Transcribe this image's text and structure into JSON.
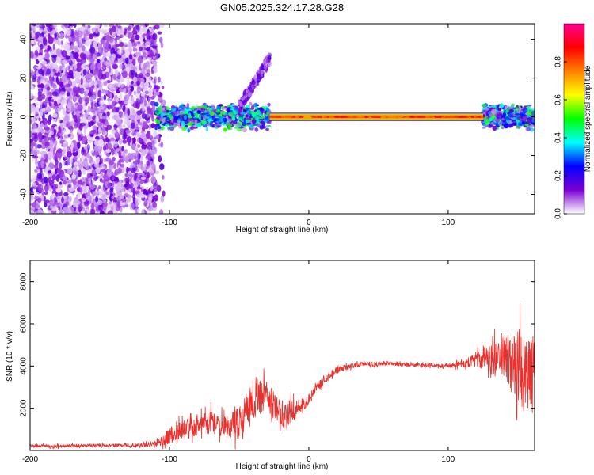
{
  "title": "GN05.2025.324.17.28.G28",
  "chart_data": [
    {
      "type": "heatmap",
      "xlabel": "Height of straight line (km)",
      "ylabel": "Frequency (Hz)",
      "xlim": [
        -200,
        162
      ],
      "ylim": [
        -50,
        48
      ],
      "xticks": [
        -200,
        -100,
        0,
        100
      ],
      "yticks": [
        -40,
        -20,
        0,
        20,
        40
      ],
      "colorbar": {
        "label": "Normalized spectral amplitude",
        "range": [
          0,
          1
        ],
        "ticks": [
          0.0,
          0.2,
          0.4,
          0.6,
          0.8
        ],
        "tick_labels": [
          "0.0",
          "0.2",
          "0.4",
          "0.6",
          "0.8"
        ],
        "colors": [
          "#ffffff",
          "#7b00d4",
          "#0000ff",
          "#00ffff",
          "#00ff00",
          "#ffff00",
          "#ff8000",
          "#ff0000",
          "#ff0090"
        ]
      },
      "regions": [
        {
          "name": "noise",
          "x_range": [
            -200,
            -110
          ],
          "freq_range": [
            -50,
            48
          ],
          "amplitude": 0.15
        },
        {
          "name": "onset-band",
          "x_range": [
            -110,
            -28
          ],
          "center_hz": 0,
          "half_width_hz": 6,
          "amplitude": 0.35
        },
        {
          "name": "branch",
          "x_range": [
            -50,
            -28
          ],
          "freq_range": [
            5,
            30
          ],
          "amplitude": 0.15
        },
        {
          "name": "steady-line",
          "x_range": [
            -28,
            125
          ],
          "center_hz": 0,
          "half_width_hz": 1.5,
          "amplitude": 0.9
        },
        {
          "name": "tail-band",
          "x_range": [
            125,
            162
          ],
          "center_hz": 0,
          "half_width_hz": 6,
          "amplitude": 0.35
        }
      ]
    },
    {
      "type": "line",
      "xlabel": "Height of straight line (km)",
      "ylabel": "SNR (10 * v/v)",
      "xlim": [
        -200,
        162
      ],
      "ylim": [
        0,
        9000
      ],
      "xticks": [
        -200,
        -100,
        0,
        100
      ],
      "yticks": [
        2000,
        4000,
        6000,
        8000
      ],
      "color": "#e8302c",
      "envelope": {
        "x": [
          -200,
          -120,
          -110,
          -100,
          -90,
          -80,
          -70,
          -60,
          -50,
          -40,
          -30,
          -20,
          -10,
          0,
          10,
          20,
          30,
          40,
          60,
          80,
          100,
          110,
          120,
          130,
          140,
          150,
          162
        ],
        "y": [
          200,
          250,
          300,
          700,
          1000,
          1200,
          1300,
          1100,
          1300,
          2500,
          2600,
          1600,
          1900,
          2400,
          3300,
          3800,
          4000,
          4100,
          4100,
          4050,
          4000,
          4100,
          4300,
          4500,
          4400,
          4000,
          3500
        ],
        "spread": [
          150,
          150,
          250,
          700,
          800,
          900,
          1000,
          900,
          1400,
          1800,
          1200,
          1500,
          800,
          500,
          400,
          300,
          250,
          200,
          150,
          150,
          150,
          300,
          700,
          1200,
          2000,
          3000,
          3500
        ]
      }
    }
  ]
}
